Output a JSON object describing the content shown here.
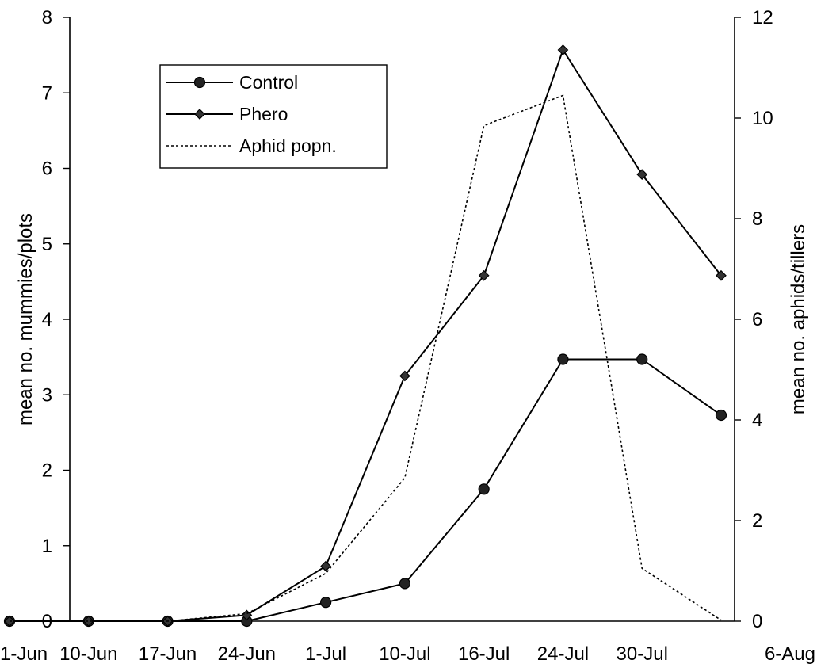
{
  "chart_data": {
    "type": "line",
    "categories": [
      "1-Jun",
      "10-Jun",
      "17-Jun",
      "24-Jun",
      "1-Jul",
      "10-Jul",
      "16-Jul",
      "24-Jul",
      "30-Jul",
      "6-Aug"
    ],
    "ylabel": "mean no. mummies/plots",
    "y2label": "mean no. aphids/tillers",
    "ylim": [
      0,
      8
    ],
    "y2lim": [
      0,
      12
    ],
    "yticks": [
      "0",
      "1",
      "2",
      "3",
      "4",
      "5",
      "6",
      "7",
      "8"
    ],
    "y2ticks": [
      "0",
      "2",
      "4",
      "6",
      "8",
      "10",
      "12"
    ],
    "grid": false,
    "legend_position": "top-left",
    "series": [
      {
        "name": "Control",
        "axis": "left",
        "marker": "circle",
        "line": "solid",
        "color": "#000000",
        "values": [
          0,
          0,
          0,
          0,
          0.25,
          0.5,
          1.75,
          3.47,
          3.47,
          2.73
        ]
      },
      {
        "name": "Phero",
        "axis": "left",
        "marker": "diamond",
        "line": "solid",
        "color": "#000000",
        "values": [
          0,
          0,
          0,
          0.08,
          0.73,
          3.25,
          4.58,
          7.57,
          5.92,
          4.58
        ]
      },
      {
        "name": "Aphid popn.",
        "axis": "right",
        "marker": "none",
        "line": "dotted",
        "color": "#000000",
        "values": [
          0,
          0,
          0,
          0.15,
          0.95,
          2.85,
          9.85,
          10.45,
          1.05,
          0.02
        ]
      }
    ]
  }
}
